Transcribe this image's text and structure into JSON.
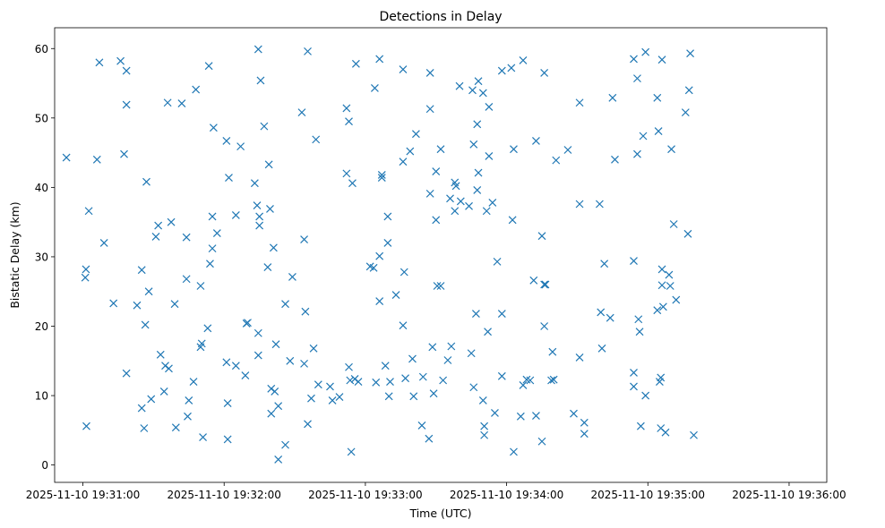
{
  "chart_data": {
    "type": "scatter",
    "title": "Detections in Delay",
    "xlabel": "Time (UTC)",
    "ylabel": "Bistatic Delay (km)",
    "marker": "x",
    "color": "#1f77b4",
    "xlim_seconds": [
      -12,
      316
    ],
    "x_origin": "2025-11-10 19:31:00",
    "ylim": [
      -2.5,
      63
    ],
    "x_ticks": [
      {
        "t": 0,
        "label": "2025-11-10 19:31:00"
      },
      {
        "t": 60,
        "label": "2025-11-10 19:32:00"
      },
      {
        "t": 120,
        "label": "2025-11-10 19:33:00"
      },
      {
        "t": 180,
        "label": "2025-11-10 19:34:00"
      },
      {
        "t": 240,
        "label": "2025-11-10 19:35:00"
      },
      {
        "t": 300,
        "label": "2025-11-10 19:36:00"
      }
    ],
    "y_ticks": [
      0,
      10,
      20,
      30,
      40,
      50,
      60
    ],
    "points": [
      [
        -7,
        44.3
      ],
      [
        1,
        27
      ],
      [
        1.3,
        28.2
      ],
      [
        1.5,
        5.6
      ],
      [
        2.5,
        36.6
      ],
      [
        6,
        44
      ],
      [
        7,
        58
      ],
      [
        9,
        32
      ],
      [
        13,
        23.3
      ],
      [
        16,
        58.2
      ],
      [
        17.5,
        44.8
      ],
      [
        18.5,
        56.8
      ],
      [
        18.5,
        51.9
      ],
      [
        18.5,
        13.2
      ],
      [
        23,
        23
      ],
      [
        25,
        8.2
      ],
      [
        25,
        28.1
      ],
      [
        26,
        5.3
      ],
      [
        26.5,
        20.2
      ],
      [
        27,
        40.8
      ],
      [
        28,
        25
      ],
      [
        29,
        9.5
      ],
      [
        31,
        32.9
      ],
      [
        32,
        34.5
      ],
      [
        33,
        15.9
      ],
      [
        34.5,
        10.6
      ],
      [
        35,
        14.3
      ],
      [
        36,
        52.2
      ],
      [
        36.5,
        13.9
      ],
      [
        37.5,
        35
      ],
      [
        39,
        23.2
      ],
      [
        39.5,
        5.4
      ],
      [
        42,
        52.1
      ],
      [
        44,
        32.8
      ],
      [
        44,
        26.8
      ],
      [
        44.5,
        7
      ],
      [
        45,
        9.3
      ],
      [
        47,
        12
      ],
      [
        48,
        54.1
      ],
      [
        50,
        25.8
      ],
      [
        50,
        17
      ],
      [
        50.5,
        17.5
      ],
      [
        51,
        4
      ],
      [
        53,
        19.7
      ],
      [
        53.5,
        57.5
      ],
      [
        54,
        29
      ],
      [
        55,
        35.8
      ],
      [
        55,
        31.2
      ],
      [
        55.5,
        48.6
      ],
      [
        57,
        33.4
      ],
      [
        61,
        14.8
      ],
      [
        61,
        46.7
      ],
      [
        61.5,
        3.7
      ],
      [
        61.5,
        8.9
      ],
      [
        62,
        41.4
      ],
      [
        65,
        36
      ],
      [
        65,
        14.3
      ],
      [
        67,
        45.9
      ],
      [
        69,
        12.9
      ],
      [
        69.5,
        20.4
      ],
      [
        70,
        20.5
      ],
      [
        73,
        40.6
      ],
      [
        74,
        37.4
      ],
      [
        74.5,
        59.9
      ],
      [
        74.5,
        15.8
      ],
      [
        74.5,
        19
      ],
      [
        75,
        34.5
      ],
      [
        75,
        35.8
      ],
      [
        75.5,
        55.4
      ],
      [
        77,
        48.8
      ],
      [
        78.5,
        28.5
      ],
      [
        79,
        43.3
      ],
      [
        79.5,
        36.9
      ],
      [
        80,
        7.4
      ],
      [
        80,
        11
      ],
      [
        81,
        31.3
      ],
      [
        81.5,
        10.6
      ],
      [
        82,
        17.4
      ],
      [
        83,
        8.5
      ],
      [
        83,
        0.8
      ],
      [
        86,
        23.2
      ],
      [
        86,
        2.9
      ],
      [
        88,
        15
      ],
      [
        89,
        27.1
      ],
      [
        93,
        50.8
      ],
      [
        94,
        14.6
      ],
      [
        94,
        32.5
      ],
      [
        94.5,
        22.1
      ],
      [
        95.5,
        5.9
      ],
      [
        95.5,
        59.6
      ],
      [
        97,
        9.6
      ],
      [
        98,
        16.8
      ],
      [
        99,
        46.9
      ],
      [
        100,
        11.6
      ],
      [
        105,
        11.3
      ],
      [
        106,
        9.3
      ],
      [
        109,
        9.8
      ],
      [
        112,
        51.4
      ],
      [
        112,
        42
      ],
      [
        113,
        49.5
      ],
      [
        113,
        14.1
      ],
      [
        113.5,
        12.2
      ],
      [
        114,
        1.9
      ],
      [
        114.5,
        40.6
      ],
      [
        115.5,
        12.4
      ],
      [
        116,
        57.8
      ],
      [
        117,
        12
      ],
      [
        122,
        28.6
      ],
      [
        123.5,
        28.4
      ],
      [
        124,
        54.3
      ],
      [
        124.5,
        11.9
      ],
      [
        126,
        58.5
      ],
      [
        126,
        30.1
      ],
      [
        126,
        23.6
      ],
      [
        127,
        41.8
      ],
      [
        127,
        41.4
      ],
      [
        128.5,
        14.3
      ],
      [
        129.5,
        35.8
      ],
      [
        129.5,
        32
      ],
      [
        130,
        9.9
      ],
      [
        130.5,
        12
      ],
      [
        133,
        24.5
      ],
      [
        136,
        43.7
      ],
      [
        136,
        57
      ],
      [
        136,
        20.1
      ],
      [
        136.5,
        27.8
      ],
      [
        137,
        12.5
      ],
      [
        139,
        45.2
      ],
      [
        140,
        15.3
      ],
      [
        140.5,
        9.9
      ],
      [
        141.5,
        47.7
      ],
      [
        144,
        5.7
      ],
      [
        144.5,
        12.7
      ],
      [
        147,
        3.8
      ],
      [
        147.5,
        51.3
      ],
      [
        147.5,
        39.1
      ],
      [
        147.5,
        56.5
      ],
      [
        148.5,
        17
      ],
      [
        149,
        10.3
      ],
      [
        150,
        42.3
      ],
      [
        150,
        35.3
      ],
      [
        150.5,
        25.8
      ],
      [
        152,
        25.8
      ],
      [
        152,
        45.5
      ],
      [
        153,
        12.2
      ],
      [
        155,
        15.1
      ],
      [
        156.5,
        17.1
      ],
      [
        156,
        38.4
      ],
      [
        158,
        40.7
      ],
      [
        158,
        36.6
      ],
      [
        158.5,
        40.2
      ],
      [
        160,
        54.6
      ],
      [
        160.5,
        38
      ],
      [
        164,
        37.3
      ],
      [
        165,
        16.1
      ],
      [
        165.5,
        54
      ],
      [
        166,
        46.2
      ],
      [
        166,
        11.2
      ],
      [
        167,
        21.8
      ],
      [
        167.5,
        49.1
      ],
      [
        167.5,
        39.6
      ],
      [
        168,
        42.1
      ],
      [
        168,
        55.3
      ],
      [
        170,
        53.6
      ],
      [
        170,
        9.3
      ],
      [
        170.5,
        5.6
      ],
      [
        170.5,
        4.3
      ],
      [
        171.5,
        36.6
      ],
      [
        172,
        19.2
      ],
      [
        172.5,
        51.6
      ],
      [
        172.5,
        44.5
      ],
      [
        174,
        37.8
      ],
      [
        175,
        7.5
      ],
      [
        176,
        29.3
      ],
      [
        178,
        56.8
      ],
      [
        178,
        21.8
      ],
      [
        178,
        12.8
      ],
      [
        182,
        57.2
      ],
      [
        182.5,
        35.3
      ],
      [
        183,
        45.5
      ],
      [
        183,
        1.9
      ],
      [
        186,
        7
      ],
      [
        187,
        58.3
      ],
      [
        187,
        11.5
      ],
      [
        188.5,
        12.3
      ],
      [
        190,
        12.2
      ],
      [
        191.5,
        26.6
      ],
      [
        192.5,
        7.1
      ],
      [
        192.5,
        46.7
      ],
      [
        195,
        33
      ],
      [
        195,
        3.4
      ],
      [
        196,
        26
      ],
      [
        196,
        56.5
      ],
      [
        196,
        20
      ],
      [
        196.5,
        26
      ],
      [
        199,
        12.2
      ],
      [
        199.5,
        16.3
      ],
      [
        200,
        12.3
      ],
      [
        201,
        43.9
      ],
      [
        206,
        45.4
      ],
      [
        208.5,
        7.4
      ],
      [
        211,
        52.2
      ],
      [
        211,
        37.6
      ],
      [
        211,
        15.5
      ],
      [
        213,
        6.1
      ],
      [
        213,
        4.5
      ],
      [
        219.5,
        37.6
      ],
      [
        220,
        22
      ],
      [
        220.5,
        16.8
      ],
      [
        221.5,
        29
      ],
      [
        224,
        21.2
      ],
      [
        225,
        52.9
      ],
      [
        226,
        44
      ],
      [
        234,
        58.5
      ],
      [
        234,
        29.4
      ],
      [
        234,
        13.3
      ],
      [
        234,
        11.3
      ],
      [
        235.5,
        55.7
      ],
      [
        235.5,
        44.8
      ],
      [
        236,
        21
      ],
      [
        236.5,
        19.2
      ],
      [
        237,
        5.6
      ],
      [
        238,
        47.4
      ],
      [
        239,
        10
      ],
      [
        239,
        59.5
      ],
      [
        244,
        52.9
      ],
      [
        244,
        22.3
      ],
      [
        244.5,
        48.1
      ],
      [
        245,
        12
      ],
      [
        245.5,
        12.6
      ],
      [
        245.5,
        5.3
      ],
      [
        246,
        28.2
      ],
      [
        246,
        58.4
      ],
      [
        246,
        25.9
      ],
      [
        246.5,
        22.8
      ],
      [
        247.5,
        4.7
      ],
      [
        249,
        27.4
      ],
      [
        249.5,
        25.8
      ],
      [
        250,
        45.5
      ],
      [
        251,
        34.7
      ],
      [
        252,
        23.8
      ],
      [
        256,
        50.8
      ],
      [
        257,
        33.3
      ],
      [
        257.5,
        54
      ],
      [
        258,
        59.3
      ],
      [
        259.5,
        4.3
      ]
    ]
  }
}
